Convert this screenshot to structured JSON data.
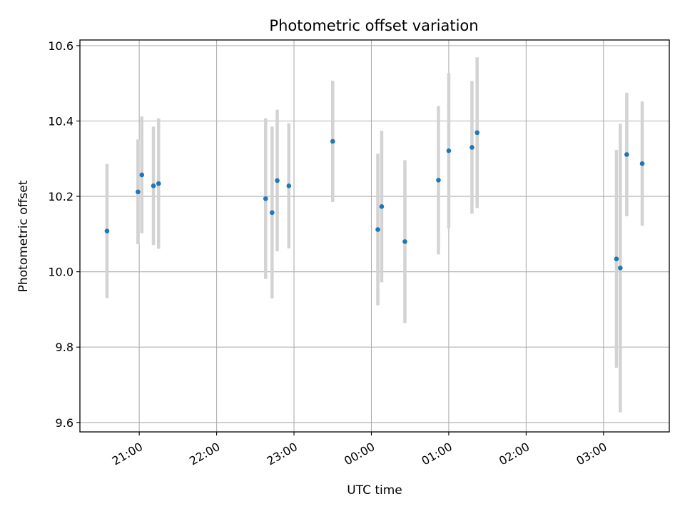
{
  "chart_data": {
    "type": "scatter",
    "title": "Photometric offset variation",
    "xlabel": "UTC time",
    "ylabel": "Photometric offset",
    "x_axis": {
      "type": "time",
      "domain": [
        "20:14",
        "27:51"
      ],
      "ticks": [
        "21:00",
        "22:00",
        "23:00",
        "00:00",
        "01:00",
        "02:00",
        "03:00"
      ],
      "tick_label_rotation_deg": 30
    },
    "y_axis": {
      "ylim": [
        9.575,
        10.615
      ],
      "ticks": [
        "9.6",
        "9.8",
        "10.0",
        "10.2",
        "10.4",
        "10.6"
      ]
    },
    "grid": true,
    "point_color": "#1f77b4",
    "errorbar_color": "#d3d3d3",
    "points": [
      {
        "t": "20:35",
        "y": 10.108,
        "yerr": 0.178
      },
      {
        "t": "20:59",
        "y": 10.212,
        "yerr": 0.139
      },
      {
        "t": "21:02",
        "y": 10.257,
        "yerr": 0.155
      },
      {
        "t": "21:11",
        "y": 10.228,
        "yerr": 0.157
      },
      {
        "t": "21:15",
        "y": 10.234,
        "yerr": 0.173
      },
      {
        "t": "22:38",
        "y": 10.194,
        "yerr": 0.213
      },
      {
        "t": "22:43",
        "y": 10.157,
        "yerr": 0.228
      },
      {
        "t": "22:47",
        "y": 10.242,
        "yerr": 0.188
      },
      {
        "t": "22:56",
        "y": 10.228,
        "yerr": 0.166
      },
      {
        "t": "23:30",
        "y": 10.346,
        "yerr": 0.161
      },
      {
        "t": "24:05",
        "y": 10.112,
        "yerr": 0.201
      },
      {
        "t": "24:08",
        "y": 10.173,
        "yerr": 0.201
      },
      {
        "t": "24:26",
        "y": 10.08,
        "yerr": 0.216
      },
      {
        "t": "24:52",
        "y": 10.243,
        "yerr": 0.197
      },
      {
        "t": "25:00",
        "y": 10.321,
        "yerr": 0.206
      },
      {
        "t": "25:18",
        "y": 10.33,
        "yerr": 0.176
      },
      {
        "t": "25:22",
        "y": 10.369,
        "yerr": 0.2
      },
      {
        "t": "27:10",
        "y": 10.034,
        "yerr": 0.289
      },
      {
        "t": "27:13",
        "y": 10.01,
        "yerr": 0.383
      },
      {
        "t": "27:18",
        "y": 10.311,
        "yerr": 0.164
      },
      {
        "t": "27:30",
        "y": 10.287,
        "yerr": 0.165
      }
    ]
  }
}
